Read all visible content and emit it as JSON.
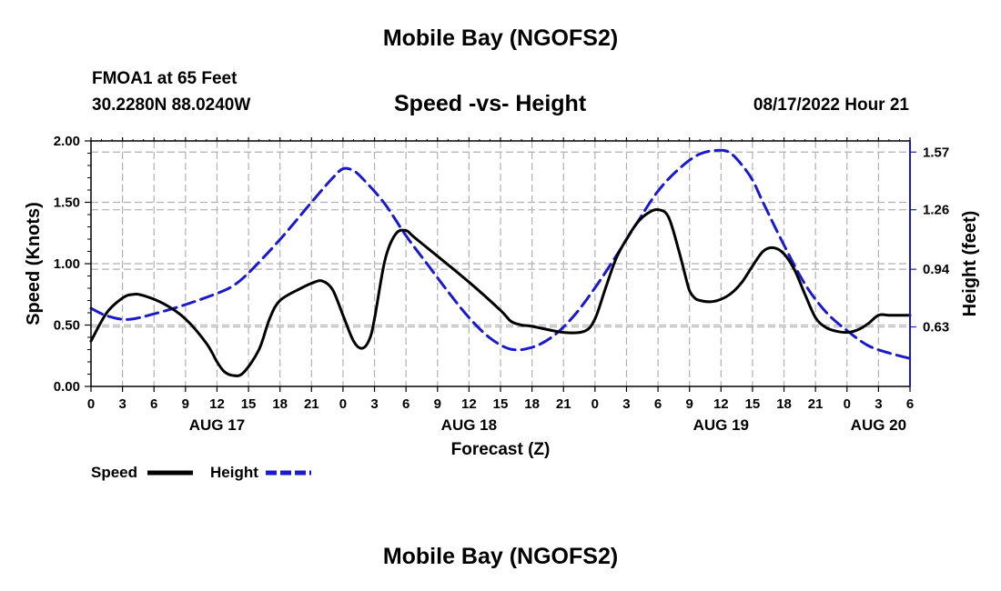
{
  "header": {
    "title": "Mobile Bay (NGOFS2)",
    "station": "FMOA1 at 65 Feet",
    "coords": "30.2280N  88.0240W",
    "subtitle": "Speed -vs- Height",
    "datetime": "08/17/2022 Hour 21"
  },
  "footer": {
    "title": "Mobile Bay (NGOFS2)"
  },
  "chart_data": {
    "type": "line",
    "title": "Speed -vs- Height",
    "xlabel": "Forecast (Z)",
    "ylabel_left": "Speed (Knots)",
    "ylabel_right": "Height (feet)",
    "grid": true,
    "x_unit": "hours from AUG 17 00Z",
    "xlim": [
      0,
      78
    ],
    "ylim_left": [
      0.0,
      2.0
    ],
    "ylim_right": [
      0.31,
      1.63
    ],
    "left_ticks": [
      0.0,
      0.5,
      1.0,
      1.5,
      2.0
    ],
    "left_tick_labels": [
      "0.00",
      "0.50",
      "1.00",
      "1.50",
      "2.00"
    ],
    "right_ticks": [
      0.63,
      0.94,
      1.26,
      1.57
    ],
    "right_tick_labels": [
      "0.63",
      "0.94",
      "1.26",
      "1.57"
    ],
    "x_ticks": [
      0,
      3,
      6,
      9,
      12,
      15,
      18,
      21,
      24,
      27,
      30,
      33,
      36,
      39,
      42,
      45,
      48,
      51,
      54,
      57,
      60,
      63,
      66,
      69,
      72,
      75,
      78
    ],
    "x_tick_labels": [
      "0",
      "3",
      "6",
      "9",
      "12",
      "15",
      "18",
      "21",
      "0",
      "3",
      "6",
      "9",
      "12",
      "15",
      "18",
      "21",
      "0",
      "3",
      "6",
      "9",
      "12",
      "15",
      "18",
      "21",
      "0",
      "3",
      "6"
    ],
    "day_labels": [
      {
        "x": 12,
        "label": "AUG 17"
      },
      {
        "x": 36,
        "label": "AUG 18"
      },
      {
        "x": 60,
        "label": "AUG 19"
      },
      {
        "x": 75,
        "label": "AUG 20"
      }
    ],
    "legend": {
      "placement": "bottom-left",
      "speed_label": "Speed",
      "height_label": "Height"
    },
    "series": [
      {
        "name": "Speed",
        "axis": "left",
        "color": "#000000",
        "style": "solid",
        "x": [
          0,
          1.5,
          3,
          4,
          5,
          7,
          9,
          11,
          12,
          12.7,
          13.5,
          14.5,
          16,
          17,
          18,
          20,
          21,
          22,
          23,
          24,
          25,
          25.8,
          26.5,
          27,
          28,
          29,
          30,
          31,
          36,
          39,
          40,
          41,
          42,
          45,
          47,
          48,
          49,
          50,
          51,
          52,
          53,
          54,
          55,
          56,
          56.7,
          57,
          57.5,
          58,
          59,
          60,
          61,
          62,
          63,
          64,
          65,
          66,
          67,
          68,
          69,
          70,
          71,
          72,
          73,
          74,
          75,
          76,
          77,
          78
        ],
        "y": [
          0.37,
          0.6,
          0.72,
          0.75,
          0.74,
          0.67,
          0.55,
          0.35,
          0.2,
          0.12,
          0.09,
          0.11,
          0.3,
          0.55,
          0.7,
          0.8,
          0.84,
          0.86,
          0.79,
          0.58,
          0.37,
          0.31,
          0.38,
          0.55,
          1.03,
          1.24,
          1.27,
          1.2,
          0.85,
          0.62,
          0.53,
          0.5,
          0.49,
          0.44,
          0.45,
          0.55,
          0.8,
          1.04,
          1.2,
          1.33,
          1.41,
          1.44,
          1.38,
          1.1,
          0.87,
          0.78,
          0.72,
          0.7,
          0.69,
          0.71,
          0.76,
          0.85,
          0.98,
          1.1,
          1.13,
          1.08,
          0.95,
          0.75,
          0.56,
          0.48,
          0.45,
          0.44,
          0.46,
          0.51,
          0.58,
          0.58,
          0.58,
          0.58
        ]
      },
      {
        "name": "Height",
        "axis": "right",
        "color": "#1a1acc",
        "style": "dashed",
        "x": [
          0,
          1.5,
          3.5,
          6,
          9,
          12,
          13.5,
          15,
          18,
          21,
          23,
          24,
          25,
          26,
          28,
          30,
          32,
          34,
          36,
          38,
          40,
          42,
          44,
          46,
          48,
          50,
          52,
          54,
          56,
          58,
          60,
          61,
          62,
          63,
          64,
          66,
          68,
          70,
          72,
          74,
          76,
          78
        ],
        "y": [
          0.73,
          0.69,
          0.67,
          0.7,
          0.75,
          0.81,
          0.85,
          0.92,
          1.1,
          1.3,
          1.43,
          1.48,
          1.47,
          1.42,
          1.29,
          1.12,
          0.97,
          0.82,
          0.68,
          0.57,
          0.51,
          0.52,
          0.58,
          0.69,
          0.84,
          1.01,
          1.19,
          1.36,
          1.48,
          1.56,
          1.58,
          1.56,
          1.5,
          1.42,
          1.3,
          1.07,
          0.86,
          0.71,
          0.61,
          0.53,
          0.49,
          0.46
        ]
      }
    ]
  }
}
